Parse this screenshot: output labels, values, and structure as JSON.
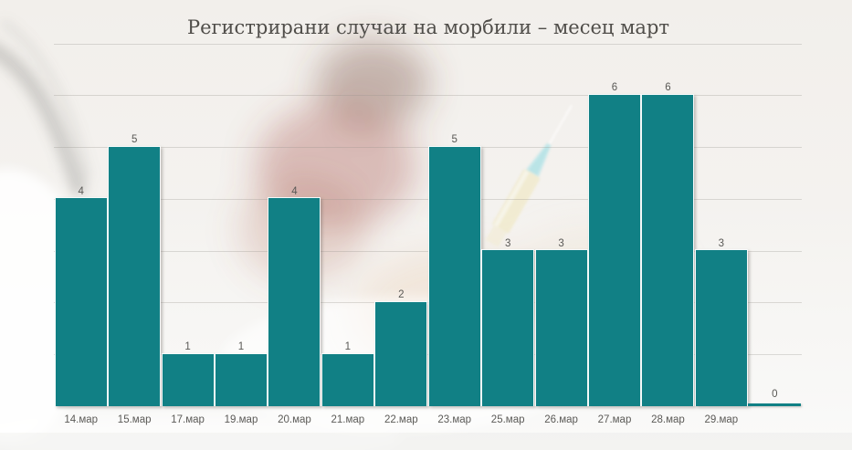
{
  "title": "Регистрирани случаи на морбили – месец март",
  "chart_data": {
    "type": "bar",
    "title": "Регистрирани случаи на морбили – месец март",
    "categories": [
      "14.мар",
      "15.мар",
      "17.мар",
      "19.мар",
      "20.мар",
      "21.мар",
      "22.мар",
      "23.мар",
      "25.мар",
      "26.мар",
      "27.мар",
      "28.мар",
      "29.мар",
      ""
    ],
    "values": [
      4,
      5,
      1,
      1,
      4,
      1,
      2,
      5,
      3,
      3,
      6,
      6,
      3,
      0
    ],
    "data_labels": [
      "4",
      "5",
      "1",
      "1",
      "4",
      "1",
      "2",
      "5",
      "3",
      "3",
      "6",
      "6",
      "3",
      "0"
    ],
    "xlabel": "",
    "ylabel": "",
    "ylim": [
      0,
      7
    ],
    "grid": "horizontal",
    "gridline_values": [
      1,
      2,
      3,
      4,
      5,
      6,
      7
    ],
    "legend": "none",
    "bar_color": "#118085",
    "label_color": "#595855",
    "title_color": "#4e4c48",
    "background": "faint washed-out photo: child, syringe, hands"
  }
}
